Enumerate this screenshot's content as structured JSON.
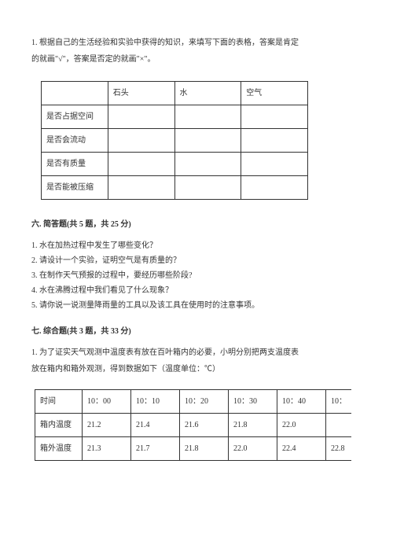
{
  "intro": {
    "line1": "1. 根据自己的生活经验和实验中获得的知识，来填写下面的表格，答案是肯定",
    "line2": "的就画\"√\"，答案是否定的就画\"×\"。"
  },
  "table1": {
    "headers": [
      "",
      "石头",
      "水",
      "空气"
    ],
    "rowLabels": [
      "是否占据空间",
      "是否会流动",
      "是否有质量",
      "是否能被压缩"
    ]
  },
  "section6": {
    "title": "六. 简答题(共 5 题，共 25 分)",
    "items": [
      "1. 水在加热过程中发生了哪些变化？",
      "2. 请设计一个实验，证明空气是有质量的？",
      "3. 在制作天气预报的过程中，要经历哪些阶段?",
      "4. 水在沸腾过程中我们看见了什么现象？",
      "5. 请你说一说测量降雨量的工具以及该工具在使用时的注意事项。"
    ]
  },
  "section7": {
    "title": "七. 综合题(共 3 题，共 33 分)",
    "p1": "1. 为了证实天气观测中温度表有放在百叶箱内的必要，小明分别把两支温度表",
    "p2": "放在箱内和箱外观测，得到数据如下（温度单位：℃）"
  },
  "table2": {
    "header": [
      "时间",
      "10：00",
      "10：10",
      "10：20",
      "10：30",
      "10：40",
      "10："
    ],
    "row1": [
      "箱内温度",
      "21.2",
      "21.4",
      "21.6",
      "21.8",
      "22.0",
      ""
    ],
    "row2": [
      "箱外温度",
      "21.3",
      "21.7",
      "21.8",
      "22.0",
      "22.4",
      "22.8"
    ]
  }
}
